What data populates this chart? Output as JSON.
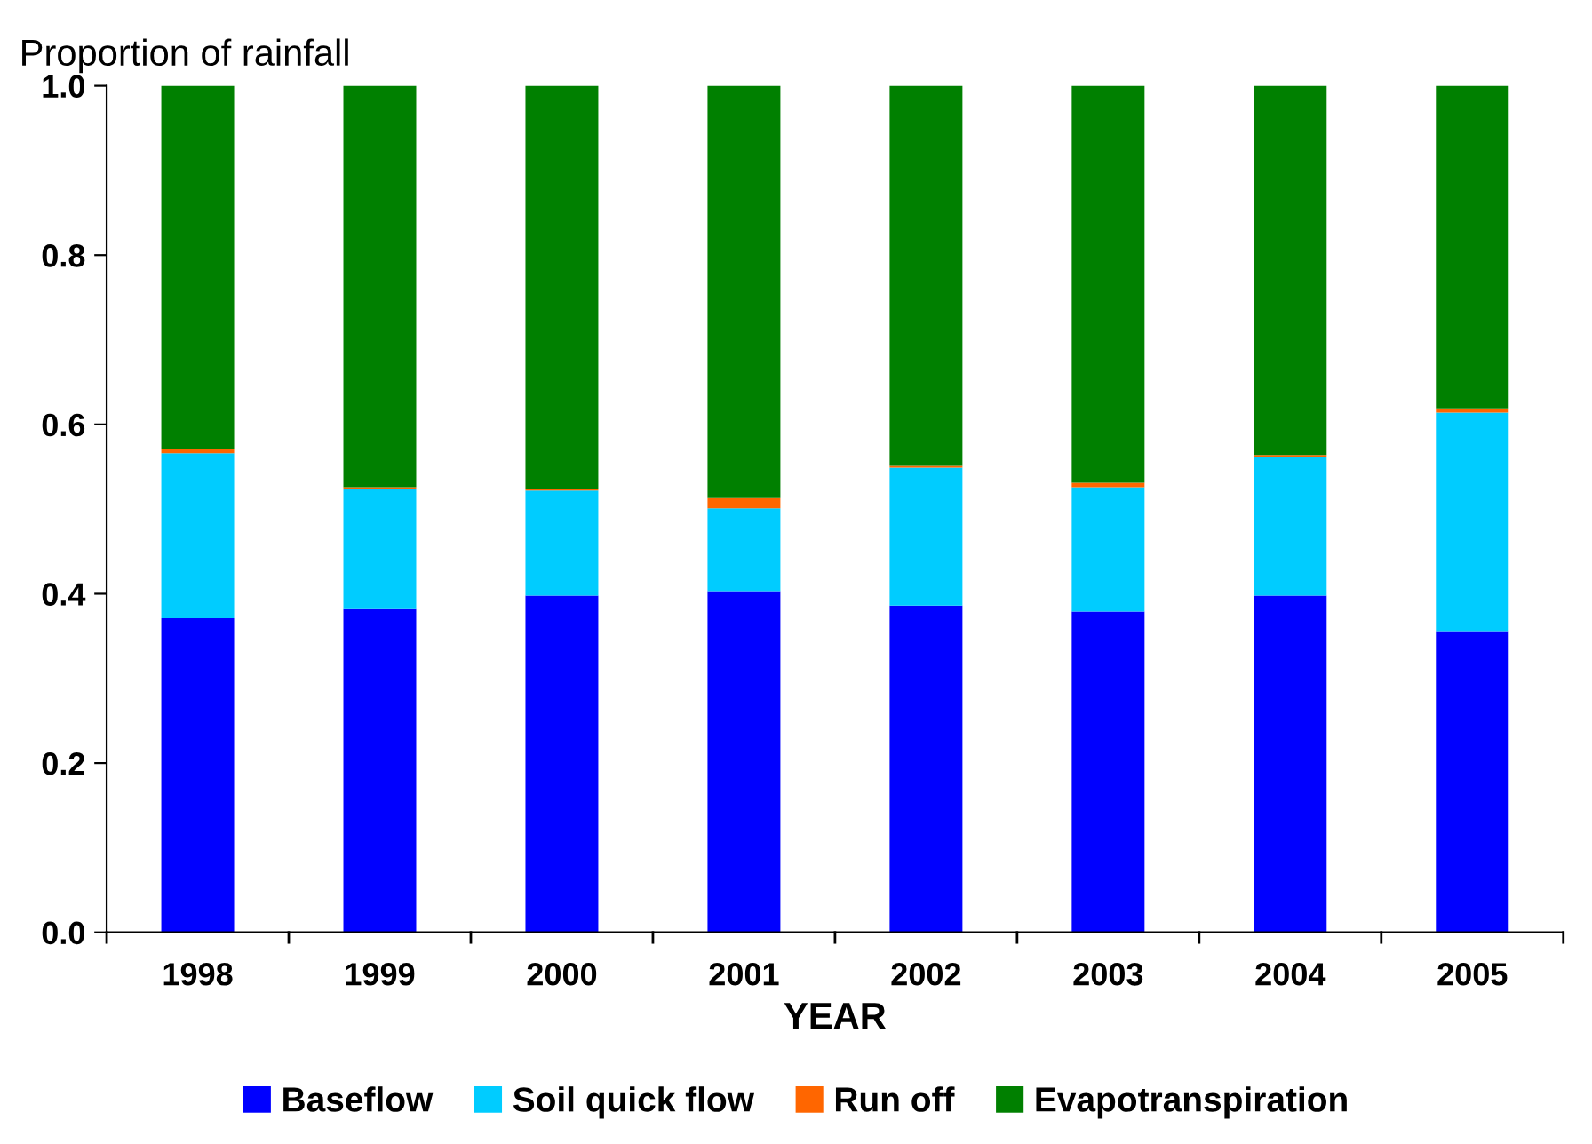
{
  "chart_data": {
    "type": "bar",
    "stacked": true,
    "ylabel": "Proportion of rainfall",
    "xlabel": "YEAR",
    "categories": [
      "1998",
      "1999",
      "2000",
      "2001",
      "2002",
      "2003",
      "2004",
      "2005"
    ],
    "series": [
      {
        "name": "Baseflow",
        "color": "#0000ff",
        "values": [
          0.371,
          0.382,
          0.398,
          0.403,
          0.386,
          0.379,
          0.398,
          0.356
        ]
      },
      {
        "name": "Soil quick flow",
        "color": "#00ccff",
        "values": [
          0.195,
          0.142,
          0.124,
          0.098,
          0.163,
          0.147,
          0.164,
          0.258
        ]
      },
      {
        "name": "Run off",
        "color": "#ff6600",
        "values": [
          0.005,
          0.002,
          0.002,
          0.012,
          0.002,
          0.005,
          0.002,
          0.005
        ]
      },
      {
        "name": "Evapotranspiration",
        "color": "#008000",
        "values": [
          0.429,
          0.474,
          0.476,
          0.487,
          0.449,
          0.469,
          0.436,
          0.381
        ]
      }
    ],
    "ylim": [
      0,
      1.0
    ],
    "yticks": [
      {
        "value": 0,
        "label": "0.0"
      },
      {
        "value": 0.2,
        "label": "0.2"
      },
      {
        "value": 0.4,
        "label": "0.4"
      },
      {
        "value": 0.6,
        "label": "0.6"
      },
      {
        "value": 0.8,
        "label": "0.8"
      },
      {
        "value": 1.0,
        "label": "1.0"
      }
    ],
    "grid": false,
    "legend": "bottom"
  }
}
